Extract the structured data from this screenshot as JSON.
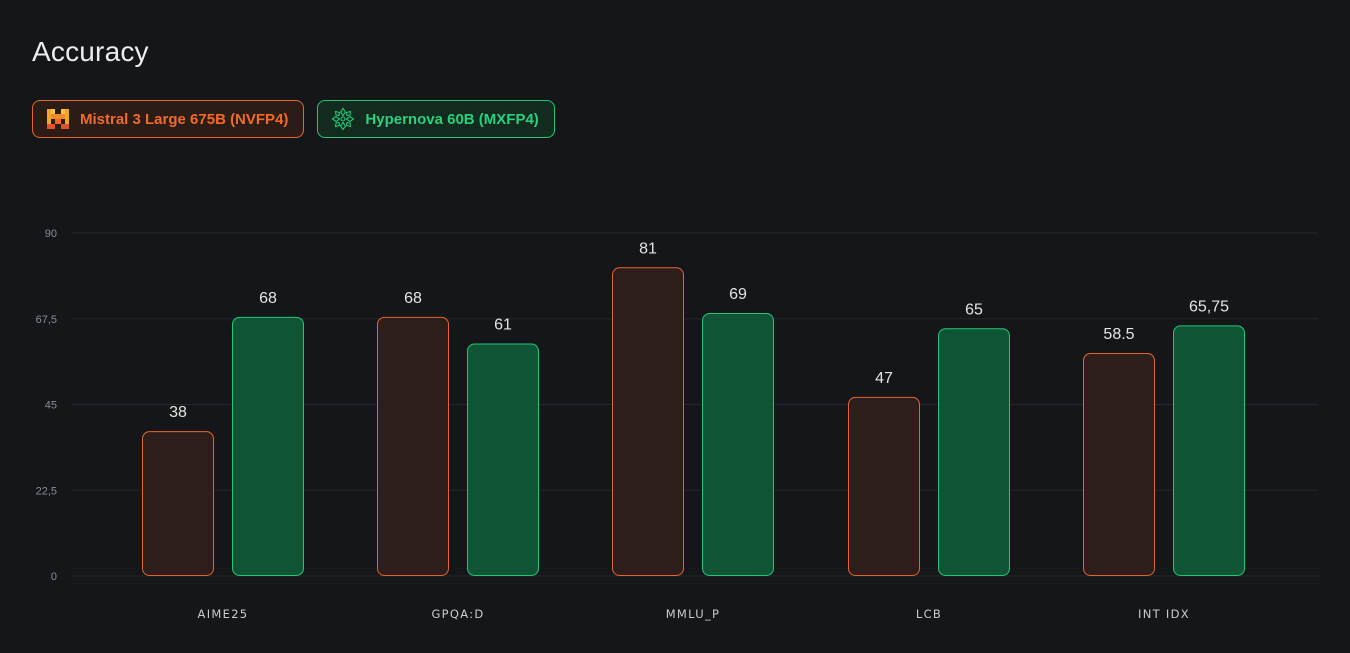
{
  "header": {
    "title": "Accuracy"
  },
  "legend": {
    "items": [
      {
        "label": "Mistral 3 Large 675B (NVFP4)",
        "icon": "mistral-logo-icon"
      },
      {
        "label": "Hypernova 60B (MXFP4)",
        "icon": "hypernova-snowflake-icon"
      }
    ]
  },
  "colors": {
    "background": "#141619",
    "gridline": "#24272b",
    "mistral_fill": "#2e1e1b",
    "mistral_stroke": "#e8632c",
    "hypernova_fill": "#0f5535",
    "hypernova_stroke": "#22c776"
  },
  "chart_data": {
    "type": "bar",
    "title": "Accuracy",
    "xlabel": "",
    "ylabel": "",
    "ylim": [
      0,
      90
    ],
    "yticks": [
      "0",
      "22,5",
      "45",
      "67,5",
      "90"
    ],
    "ytick_values": [
      0,
      22.5,
      45,
      67.5,
      90
    ],
    "grid": true,
    "legend_position": "top-left",
    "categories": [
      "AIME25",
      "GPQA:D",
      "MMLU_P",
      "LCB",
      "INT IDX"
    ],
    "series": [
      {
        "name": "Mistral 3 Large 675B (NVFP4)",
        "values": [
          38,
          68,
          81,
          47,
          58.5
        ],
        "labels": [
          "38",
          "68",
          "81",
          "47",
          "58.5"
        ]
      },
      {
        "name": "Hypernova 60B (MXFP4)",
        "values": [
          68,
          61,
          69,
          65,
          65.75
        ],
        "labels": [
          "68",
          "61",
          "69",
          "65",
          "65,75"
        ]
      }
    ]
  }
}
